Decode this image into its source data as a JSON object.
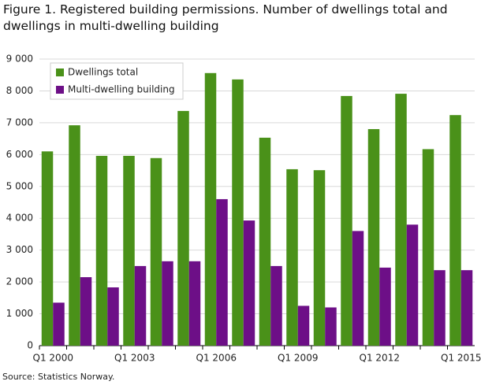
{
  "chart_data": {
    "type": "bar",
    "title": "Figure 1. Registered building permissions. Number of dwellings total and dwellings in multi-dwelling building",
    "source": "Source: Statistics Norway.",
    "categories": [
      "Q1 2000",
      null,
      null,
      "Q1 2003",
      null,
      null,
      "Q1 2006",
      null,
      null,
      "Q1 2009",
      null,
      null,
      "Q1 2012",
      null,
      null,
      "Q1 2015"
    ],
    "series": [
      {
        "name": "Dwellings total",
        "color": "#4a9119",
        "values": [
          6100,
          6920,
          5960,
          5960,
          5890,
          7370,
          8560,
          8360,
          6530,
          5540,
          5510,
          7840,
          6800,
          7910,
          6170,
          7240
        ]
      },
      {
        "name": "Multi-dwelling building",
        "color": "#6d0f87",
        "values": [
          1350,
          2150,
          1830,
          2500,
          2650,
          2650,
          4600,
          3930,
          2500,
          1250,
          1200,
          3600,
          2450,
          3800,
          2370,
          2370
        ]
      }
    ],
    "ylim": [
      0,
      9000
    ],
    "yticks": [
      0,
      {
        "value": 1000,
        "label": "1 000"
      },
      {
        "value": 2000,
        "label": "2 000"
      },
      {
        "value": 3000,
        "label": "3 000"
      },
      {
        "value": 4000,
        "label": "4 000"
      },
      {
        "value": 5000,
        "label": "5 000"
      },
      {
        "value": 6000,
        "label": "6 000"
      },
      {
        "value": 7000,
        "label": "7 000"
      },
      {
        "value": 8000,
        "label": "8 000"
      },
      {
        "value": 9000,
        "label": "9 000"
      }
    ],
    "grid": true,
    "legend": "top-left"
  }
}
